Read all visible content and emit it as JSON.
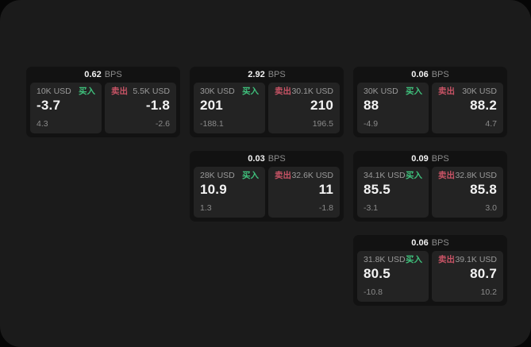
{
  "labels": {
    "bps_unit": "BPS",
    "buy": "买入",
    "sell": "卖出"
  },
  "colors": {
    "page_bg": "#1b1b1b",
    "card_bg": "#121212",
    "panel_bg": "#232323",
    "buy_green": "#3fc17c",
    "sell_red": "#c75365",
    "value_white": "#f3f3f3",
    "muted_gray": "#9a9a9a"
  },
  "cards": [
    {
      "bps": "0.62",
      "buy": {
        "amount": "10K USD",
        "value": "-3.7",
        "delta": "4.3"
      },
      "sell": {
        "amount": "5.5K USD",
        "value": "-1.8",
        "delta": "-2.6"
      }
    },
    {
      "bps": "2.92",
      "buy": {
        "amount": "30K USD",
        "value": "201",
        "delta": "-188.1"
      },
      "sell": {
        "amount": "30.1K USD",
        "value": "210",
        "delta": "196.5"
      }
    },
    {
      "bps": "0.06",
      "buy": {
        "amount": "30K USD",
        "value": "88",
        "delta": "-4.9"
      },
      "sell": {
        "amount": "30K USD",
        "value": "88.2",
        "delta": "4.7"
      }
    },
    {
      "bps": "0.03",
      "buy": {
        "amount": "28K USD",
        "value": "10.9",
        "delta": "1.3"
      },
      "sell": {
        "amount": "32.6K USD",
        "value": "11",
        "delta": "-1.8"
      }
    },
    {
      "bps": "0.09",
      "buy": {
        "amount": "34.1K USD",
        "value": "85.5",
        "delta": "-3.1"
      },
      "sell": {
        "amount": "32.8K USD",
        "value": "85.8",
        "delta": "3.0"
      }
    },
    {
      "bps": "0.06",
      "buy": {
        "amount": "31.8K USD",
        "value": "80.5",
        "delta": "-10.8"
      },
      "sell": {
        "amount": "39.1K USD",
        "value": "80.7",
        "delta": "10.2"
      }
    }
  ]
}
